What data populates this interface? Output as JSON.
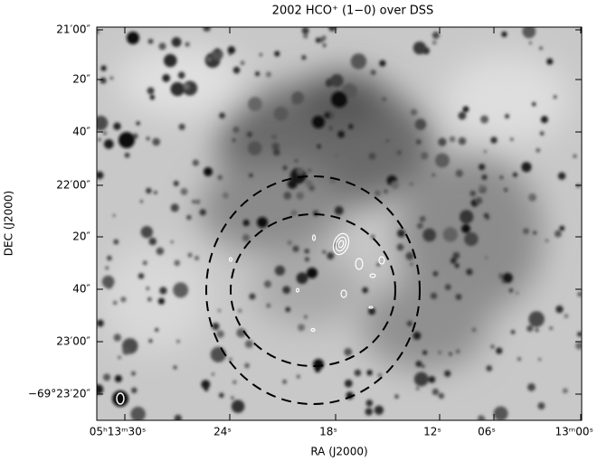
{
  "figure": {
    "title": "2002 HCO⁺ (1−0) over DSS",
    "x_axis": {
      "label": "RA (J2000)",
      "ticks": [
        "05ʰ13ᵐ30ˢ",
        "24ˢ",
        "18ˢ",
        "12ˢ",
        "06ˢ",
        "13ᵐ00ˢ"
      ]
    },
    "y_axis": {
      "label": "DEC (J2000)",
      "ticks": [
        "21′00″",
        "20″",
        "40″",
        "22′00″",
        "20″",
        "40″",
        "23′00″",
        "−69°23′20″"
      ]
    }
  }
}
